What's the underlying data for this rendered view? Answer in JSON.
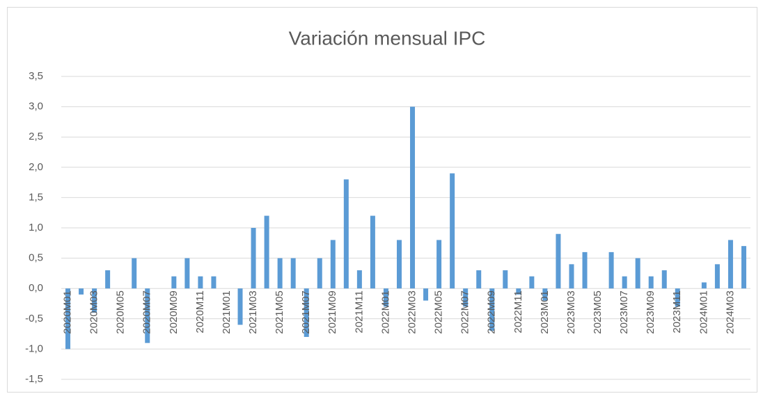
{
  "chart_data": {
    "type": "bar",
    "title": "Variación mensual IPC",
    "categories": [
      "2020M01",
      null,
      "2020M03",
      null,
      "2020M05",
      null,
      "2020M07",
      null,
      "2020M09",
      null,
      "2020M11",
      null,
      "2021M01",
      null,
      "2021M03",
      null,
      "2021M05",
      null,
      "2021M07",
      null,
      "2021M09",
      null,
      "2021M11",
      null,
      "2022M01",
      null,
      "2022M03",
      null,
      "2022M05",
      null,
      "2022M07",
      null,
      "2022M09",
      null,
      "2022M11",
      null,
      "2023M01",
      null,
      "2023M03",
      null,
      "2023M05",
      null,
      "2023M07",
      null,
      "2023M09",
      null,
      "2023M11",
      null,
      "2024M01",
      null,
      "2024M03",
      null
    ],
    "values": [
      -1.0,
      -0.1,
      -0.4,
      0.3,
      0,
      0.5,
      -0.9,
      0,
      0.2,
      0.5,
      0.2,
      0.2,
      0,
      -0.6,
      1.0,
      1.2,
      0.5,
      0.5,
      -0.8,
      0.5,
      0.8,
      1.8,
      0.3,
      1.2,
      -0.3,
      0.8,
      3.0,
      -0.2,
      0.8,
      1.9,
      -0.3,
      0.3,
      -0.7,
      0.3,
      -0.1,
      0.2,
      -0.2,
      0.9,
      0.4,
      0.6,
      0,
      0.6,
      0.2,
      0.5,
      0.2,
      0.3,
      -0.3,
      0,
      0.1,
      0.4,
      0.8,
      0.7
    ],
    "color": "#5b9bd5",
    "ylim": [
      -1.5,
      3.5
    ],
    "yticks": [
      {
        "value": -1.5,
        "label": "-1,5"
      },
      {
        "value": -1.0,
        "label": "-1,0"
      },
      {
        "value": -0.5,
        "label": "-0,5"
      },
      {
        "value": 0,
        "label": "0,0"
      },
      {
        "value": 0.5,
        "label": "0,5"
      },
      {
        "value": 1.0,
        "label": "1,0"
      },
      {
        "value": 1.5,
        "label": "1,5"
      },
      {
        "value": 2.0,
        "label": "2,0"
      },
      {
        "value": 2.5,
        "label": "2,5"
      },
      {
        "value": 3.0,
        "label": "3,0"
      },
      {
        "value": 3.5,
        "label": "3,5"
      }
    ],
    "grid": true
  }
}
